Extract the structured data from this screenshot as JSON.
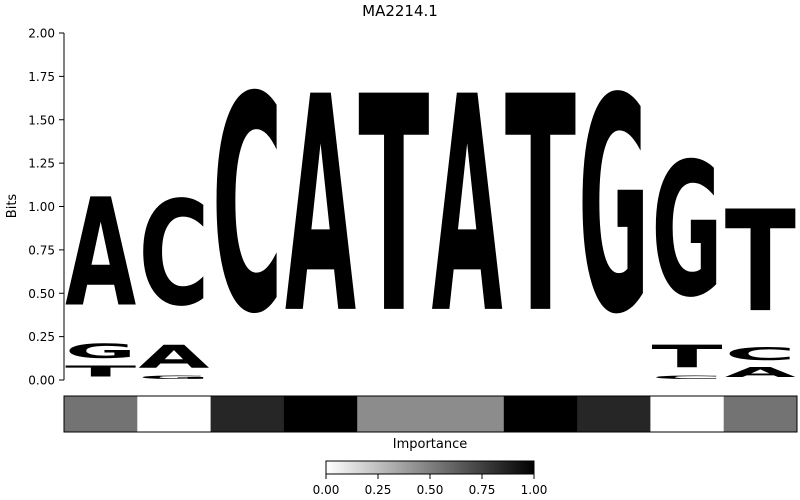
{
  "chart_data": {
    "type": "sequence-logo",
    "title": "MA2214.1",
    "ylabel": "Bits",
    "ylim": [
      0,
      2
    ],
    "yticks": [
      "0.00",
      "0.25",
      "0.50",
      "0.75",
      "1.00",
      "1.25",
      "1.50",
      "1.75",
      "2.00"
    ],
    "colors": {
      "A": "#4ea14e",
      "C": "#4a4aff",
      "G": "#ffbb46",
      "T": "#ff4c4c"
    },
    "positions": [
      [
        {
          "base": "T",
          "bits": 0.1
        },
        {
          "base": "G",
          "bits": 0.13
        },
        {
          "base": "A",
          "bits": 1.0
        }
      ],
      [
        {
          "base": "G",
          "bits": 0.03
        },
        {
          "base": "A",
          "bits": 0.21
        },
        {
          "base": "C",
          "bits": 0.97
        }
      ],
      [
        {
          "base": "C",
          "bits": 2.0
        }
      ],
      [
        {
          "base": "A",
          "bits": 2.0
        }
      ],
      [
        {
          "base": "T",
          "bits": 2.0
        }
      ],
      [
        {
          "base": "A",
          "bits": 2.0
        }
      ],
      [
        {
          "base": "T",
          "bits": 2.0
        }
      ],
      [
        {
          "base": "G",
          "bits": 1.99
        }
      ],
      [
        {
          "base": "C",
          "bits": 0.03
        },
        {
          "base": "T",
          "bits": 0.21
        },
        {
          "base": "G",
          "bits": 1.24
        }
      ],
      [
        {
          "base": "A",
          "bits": 0.09
        },
        {
          "base": "C",
          "bits": 0.12
        },
        {
          "base": "T",
          "bits": 0.94
        }
      ]
    ],
    "importance": {
      "label": "Importance",
      "values": [
        0.55,
        0.0,
        0.85,
        1.0,
        0.45,
        0.45,
        1.0,
        0.85,
        0.0,
        0.55
      ],
      "colorbar_ticks": [
        "0.00",
        "0.25",
        "0.50",
        "0.75",
        "1.00"
      ]
    }
  }
}
